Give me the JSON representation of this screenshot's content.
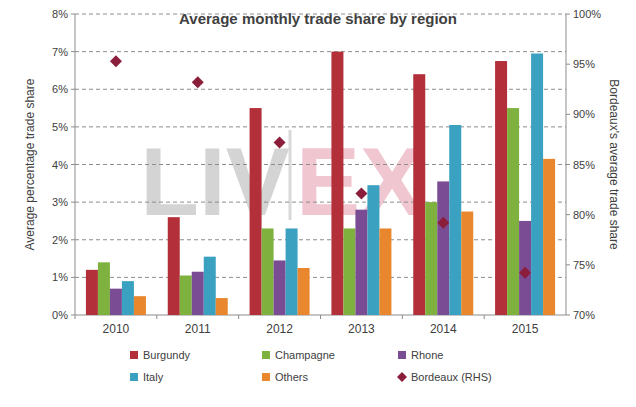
{
  "chart_data": {
    "type": "bar",
    "title": "Average monthly trade share by region",
    "y_label": "Average percentage trade share",
    "y2_label": "Bordeaux's average trade share",
    "annotations": [
      "LIV",
      "EX"
    ],
    "categories": [
      "2010",
      "2011",
      "2012",
      "2013",
      "2014",
      "2015"
    ],
    "ylim": [
      0,
      8
    ],
    "yticks": [
      {
        "value": 0,
        "label": "0%"
      },
      {
        "value": 1,
        "label": "1%"
      },
      {
        "value": 2,
        "label": "2%"
      },
      {
        "value": 3,
        "label": "3%"
      },
      {
        "value": 4,
        "label": "4%"
      },
      {
        "value": 5,
        "label": "5%"
      },
      {
        "value": 6,
        "label": "6%"
      },
      {
        "value": 7,
        "label": "7%"
      },
      {
        "value": 8,
        "label": "8%"
      }
    ],
    "y2lim": [
      70,
      100
    ],
    "y2ticks": [
      {
        "value": 70,
        "label": "70%"
      },
      {
        "value": 75,
        "label": "75%"
      },
      {
        "value": 80,
        "label": "80%"
      },
      {
        "value": 85,
        "label": "85%"
      },
      {
        "value": 90,
        "label": "90%"
      },
      {
        "value": 95,
        "label": "95%"
      },
      {
        "value": 100,
        "label": "100%"
      }
    ],
    "grid": true,
    "legend": "bottom",
    "series": [
      {
        "name": "Burgundy",
        "color": "#b3303a",
        "values": [
          1.2,
          2.6,
          5.5,
          7.0,
          6.4,
          6.75
        ]
      },
      {
        "name": "Champagne",
        "color": "#7fb13f",
        "values": [
          1.4,
          1.05,
          2.3,
          2.3,
          3.0,
          5.5
        ]
      },
      {
        "name": "Rhone",
        "color": "#7a4c94",
        "values": [
          0.7,
          1.15,
          1.45,
          2.8,
          3.55,
          2.5
        ]
      },
      {
        "name": "Italy",
        "color": "#3aa1c1",
        "values": [
          0.9,
          1.55,
          2.3,
          3.45,
          5.05,
          6.95
        ]
      },
      {
        "name": "Others",
        "color": "#e8872d",
        "values": [
          0.5,
          0.45,
          1.25,
          2.3,
          2.75,
          4.15
        ]
      },
      {
        "name": "Bordeaux (RHS)",
        "color": "#8a1e3b",
        "type": "scatter",
        "marker": "diamond",
        "axis": "y2",
        "values": [
          95.3,
          93.2,
          87.2,
          82.1,
          79.2,
          74.2
        ]
      }
    ]
  }
}
